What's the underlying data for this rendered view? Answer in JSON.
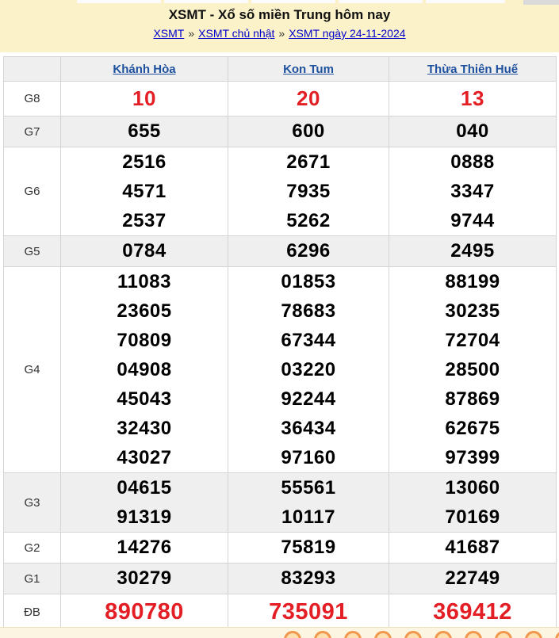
{
  "header": {
    "title": "XSMT - Xổ số miền Trung hôm nay",
    "separator": "»",
    "breadcrumb": [
      "XSMT",
      "XSMT chủ nhật",
      "XSMT ngày 24-11-2024"
    ]
  },
  "table": {
    "columns": [
      "Khánh Hòa",
      "Kon Tum",
      "Thừa Thiên Huế"
    ],
    "rows": [
      {
        "label": "G8",
        "values": [
          [
            "10"
          ],
          [
            "20"
          ],
          [
            "13"
          ]
        ]
      },
      {
        "label": "G7",
        "values": [
          [
            "655"
          ],
          [
            "600"
          ],
          [
            "040"
          ]
        ]
      },
      {
        "label": "G6",
        "values": [
          [
            "2516",
            "4571",
            "2537"
          ],
          [
            "2671",
            "7935",
            "5262"
          ],
          [
            "0888",
            "3347",
            "9744"
          ]
        ]
      },
      {
        "label": "G5",
        "values": [
          [
            "0784"
          ],
          [
            "6296"
          ],
          [
            "2495"
          ]
        ]
      },
      {
        "label": "G4",
        "values": [
          [
            "11083",
            "23605",
            "70809",
            "04908",
            "45043",
            "32430",
            "43027"
          ],
          [
            "01853",
            "78683",
            "67344",
            "03220",
            "92244",
            "36434",
            "97160"
          ],
          [
            "88199",
            "30235",
            "72704",
            "28500",
            "87869",
            "62675",
            "97399"
          ]
        ]
      },
      {
        "label": "G3",
        "values": [
          [
            "04615",
            "91319"
          ],
          [
            "55561",
            "10117"
          ],
          [
            "13060",
            "70169"
          ]
        ]
      },
      {
        "label": "G2",
        "values": [
          [
            "14276"
          ],
          [
            "75819"
          ],
          [
            "41687"
          ]
        ]
      },
      {
        "label": "G1",
        "values": [
          [
            "30279"
          ],
          [
            "83293"
          ],
          [
            "22749"
          ]
        ]
      },
      {
        "label": "ĐB",
        "values": [
          [
            "890780"
          ],
          [
            "735091"
          ],
          [
            "369412"
          ]
        ]
      }
    ]
  },
  "footer": {
    "ball_count": 10
  },
  "colors": {
    "header_bg": "#fbf2ca",
    "link_blue": "#0000cc",
    "column_link_blue": "#1d509e",
    "prize_red": "#e31e24",
    "ball_orange": "#f2974e"
  }
}
